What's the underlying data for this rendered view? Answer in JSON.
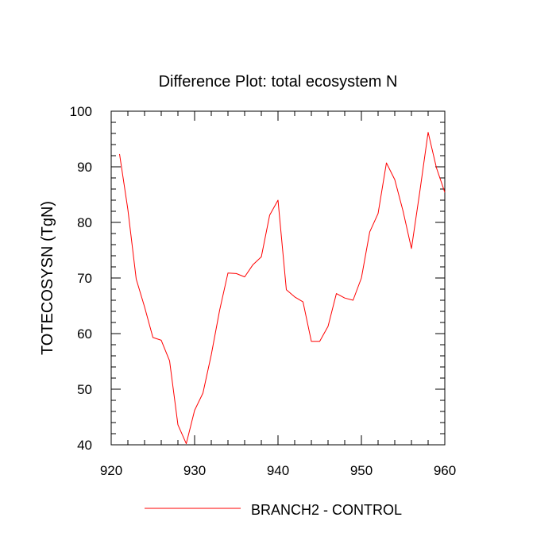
{
  "chart_data": {
    "type": "line",
    "title": "Difference Plot: total ecosystem N",
    "xlabel": "",
    "ylabel": "TOTECOSYSN  (TgN)",
    "xlim": [
      920,
      960
    ],
    "ylim": [
      40,
      100
    ],
    "xticks": [
      920,
      930,
      940,
      950,
      960
    ],
    "yticks": [
      40,
      50,
      60,
      70,
      80,
      90,
      100
    ],
    "grid": false,
    "legend_position": "bottom-center",
    "series": [
      {
        "name": "BRANCH2 - CONTROL",
        "color": "#ff0000",
        "x": [
          921,
          922,
          923,
          924,
          925,
          926,
          927,
          928,
          929,
          930,
          931,
          932,
          933,
          934,
          935,
          936,
          937,
          938,
          939,
          940,
          941,
          942,
          943,
          944,
          945,
          946,
          947,
          948,
          949,
          950,
          951,
          952,
          953,
          954,
          955,
          956,
          957,
          958,
          959,
          960
        ],
        "y": [
          92.3,
          82.3,
          69.8,
          64.8,
          59.3,
          58.8,
          55.1,
          43.6,
          40.2,
          46.2,
          49.3,
          56.2,
          64.2,
          70.9,
          70.8,
          70.2,
          72.4,
          73.8,
          81.3,
          84.0,
          67.9,
          66.6,
          65.7,
          58.6,
          58.6,
          61.3,
          67.2,
          66.4,
          66.0,
          70.0,
          78.3,
          81.6,
          90.7,
          87.7,
          82.0,
          75.3,
          85.5,
          96.2,
          89.8,
          85.4
        ]
      }
    ]
  }
}
